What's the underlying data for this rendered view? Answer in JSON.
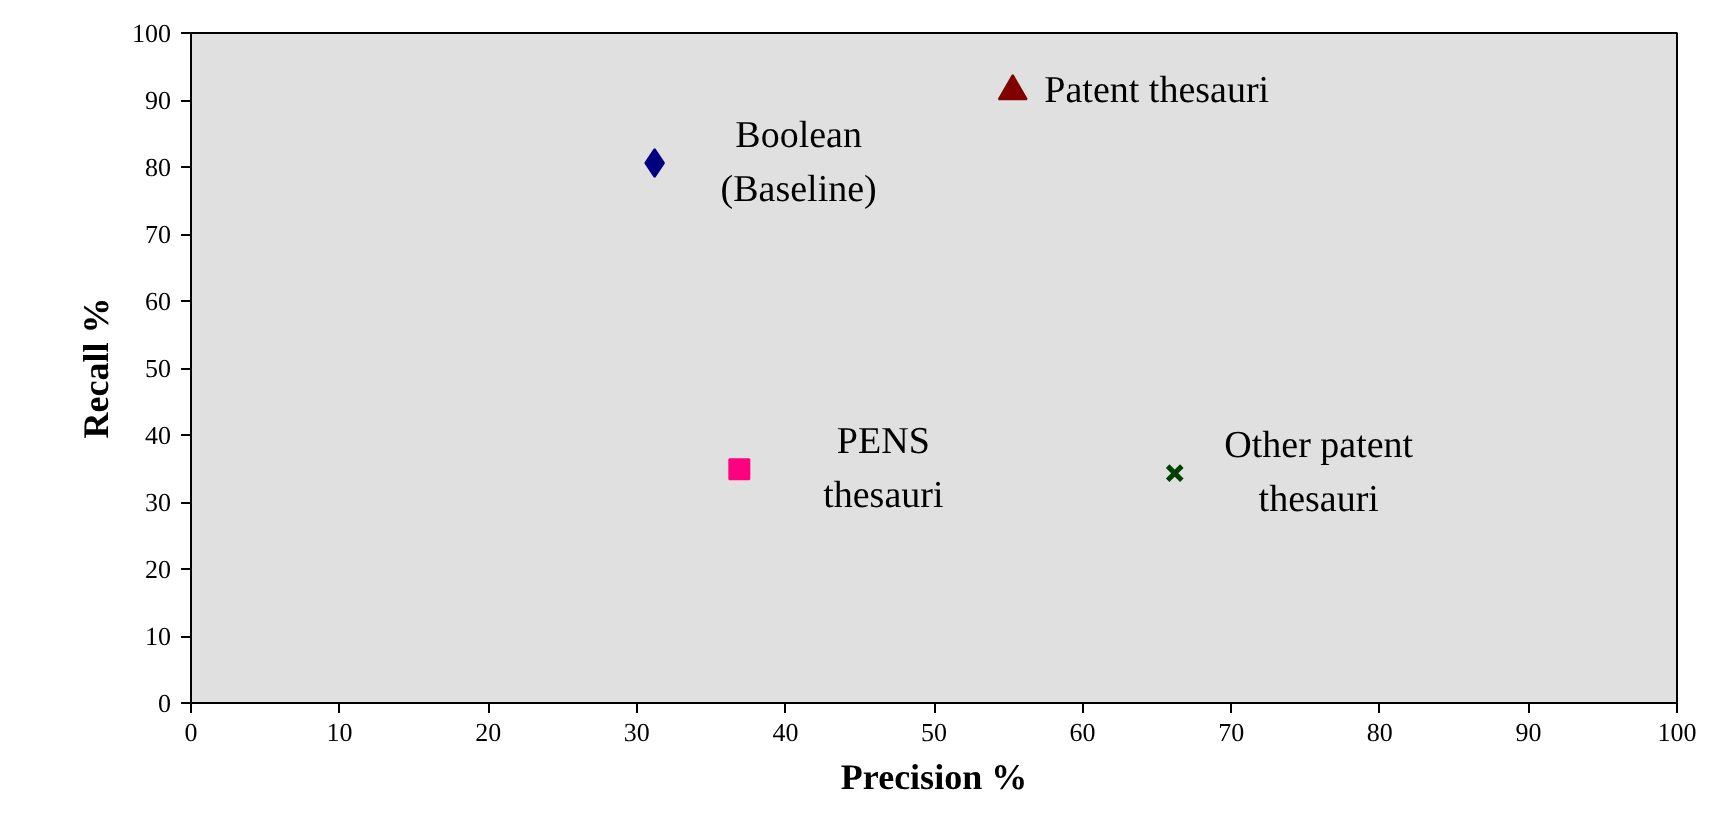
{
  "chart_data": {
    "type": "scatter",
    "xlabel": "Precision %",
    "ylabel": "Recall %",
    "xlim": [
      0,
      100
    ],
    "ylim": [
      0,
      100
    ],
    "xticks": [
      0,
      10,
      20,
      30,
      40,
      50,
      60,
      70,
      80,
      90,
      100
    ],
    "yticks": [
      0,
      10,
      20,
      30,
      40,
      50,
      60,
      70,
      80,
      90,
      100
    ],
    "grid": false,
    "series": [
      {
        "name": "Boolean\n(Baseline)",
        "color": "#000080",
        "marker": "diamond",
        "x": [
          31.2
        ],
        "values": [
          80.6
        ]
      },
      {
        "name": "Patent thesauri",
        "color": "#800000",
        "marker": "triangle",
        "x": [
          55.3
        ],
        "values": [
          91.3
        ]
      },
      {
        "name": "PENS\nthesauri",
        "color": "#ff0080",
        "marker": "square",
        "x": [
          36.9
        ],
        "values": [
          34.9
        ]
      },
      {
        "name": "Other patent\nthesauri",
        "color": "#004000",
        "marker": "cross",
        "x": [
          66.2
        ],
        "values": [
          34.3
        ]
      }
    ]
  }
}
